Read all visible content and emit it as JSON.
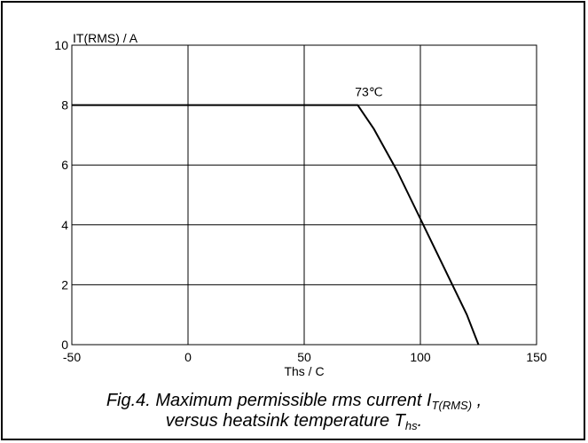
{
  "chart_data": {
    "type": "line",
    "ylabel": "IT(RMS) / A",
    "xlabel": "Ths / C",
    "xlim": [
      -50,
      150
    ],
    "ylim": [
      0,
      10
    ],
    "x_ticks": [
      -50,
      0,
      50,
      100,
      150
    ],
    "y_ticks": [
      0,
      2,
      4,
      6,
      8,
      10
    ],
    "grid": true,
    "series": [
      {
        "x": [
          -50,
          73,
          80,
          90,
          100,
          110,
          120,
          125
        ],
        "y": [
          8,
          8,
          7.2,
          5.8,
          4.2,
          2.6,
          1.0,
          0
        ]
      }
    ],
    "annotations": [
      {
        "text": "73℃",
        "x": 73,
        "y": 8
      }
    ]
  },
  "caption": {
    "line1_prefix": "Fig.4.  Maximum permissible rms current I",
    "line1_sub": "T(RMS)",
    "line1_suffix": " ,",
    "line2_prefix": "versus heatsink temperature T",
    "line2_sub": "hs",
    "line2_suffix": "."
  }
}
